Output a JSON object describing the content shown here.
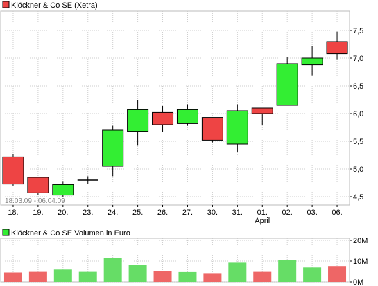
{
  "chart_data": [
    {
      "type": "candlestick",
      "legend": "Klöckner & Co SE (Xetra)",
      "legend_color": "#ee4444",
      "note": "18.03.09 - 06.04.09",
      "categories": [
        "18.",
        "19.",
        "20.",
        "23.",
        "24.",
        "25.",
        "26.",
        "27.",
        "30.",
        "31.",
        "01.",
        "02.",
        "03.",
        "06."
      ],
      "month_label": {
        "category": "01.",
        "text": "April"
      },
      "yticks": [
        "4,5",
        "5,0",
        "5,5",
        "6,0",
        "6,5",
        "7,0",
        "7,5"
      ],
      "ytick_values": [
        4.5,
        5.0,
        5.5,
        6.0,
        6.5,
        7.0,
        7.5
      ],
      "ylim": [
        4.35,
        7.85
      ],
      "candles": [
        {
          "open": 5.22,
          "close": 4.73,
          "high": 5.27,
          "low": 4.7
        },
        {
          "open": 4.85,
          "close": 4.57,
          "high": 4.85,
          "low": 4.53
        },
        {
          "open": 4.53,
          "close": 4.72,
          "high": 4.77,
          "low": 4.5
        },
        {
          "open": 4.8,
          "close": 4.8,
          "high": 4.87,
          "low": 4.73
        },
        {
          "open": 5.05,
          "close": 5.7,
          "high": 5.78,
          "low": 4.87
        },
        {
          "open": 5.68,
          "close": 6.07,
          "high": 6.25,
          "low": 5.42
        },
        {
          "open": 6.02,
          "close": 5.8,
          "high": 6.14,
          "low": 5.67
        },
        {
          "open": 5.82,
          "close": 6.07,
          "high": 6.17,
          "low": 5.78
        },
        {
          "open": 5.93,
          "close": 5.52,
          "high": 5.93,
          "low": 5.48
        },
        {
          "open": 5.45,
          "close": 6.05,
          "high": 6.17,
          "low": 5.3
        },
        {
          "open": 6.1,
          "close": 6.0,
          "high": 6.1,
          "low": 5.8
        },
        {
          "open": 6.15,
          "close": 6.9,
          "high": 7.02,
          "low": 6.15
        },
        {
          "open": 6.88,
          "close": 7.0,
          "high": 7.22,
          "low": 6.68
        },
        {
          "open": 7.3,
          "close": 7.08,
          "high": 7.48,
          "low": 6.98
        }
      ],
      "up_color": "#33ee33",
      "down_color": "#ee4444"
    },
    {
      "type": "bar",
      "legend": "Klöckner & Co SE Volumen in Euro",
      "legend_color": "#33ee33",
      "categories": [
        "18.",
        "19.",
        "20.",
        "23.",
        "24.",
        "25.",
        "26.",
        "27.",
        "30.",
        "31.",
        "01.",
        "02.",
        "03.",
        "06."
      ],
      "values": [
        4.5,
        4.8,
        5.9,
        4.8,
        11.5,
        8.0,
        5.2,
        4.7,
        4.2,
        9.2,
        4.8,
        10.4,
        6.9,
        7.6
      ],
      "unit": "M",
      "yticks": [
        "0M",
        "10M",
        "20M"
      ],
      "ytick_values": [
        0,
        10,
        20
      ],
      "ylim": [
        0,
        20
      ],
      "up_color": "#66dd66",
      "down_color": "#ee6666"
    }
  ]
}
